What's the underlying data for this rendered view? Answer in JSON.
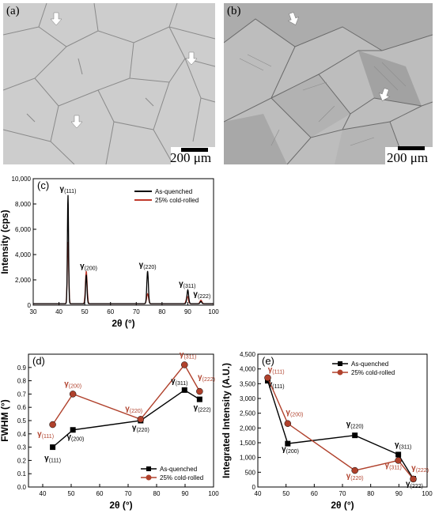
{
  "micrographs": {
    "a": {
      "label": "(a)",
      "scale": "200 μm"
    },
    "b": {
      "label": "(b)",
      "scale": "200 μm"
    }
  },
  "chart_data": [
    {
      "panel": "(c)",
      "type": "line",
      "xlabel": "2θ (°)",
      "ylabel": "Intensity (cps)",
      "xlim": [
        30,
        100
      ],
      "ylim": [
        0,
        10000
      ],
      "xticks": [
        30,
        40,
        50,
        60,
        70,
        80,
        90,
        100
      ],
      "yticks": [
        0,
        2000,
        4000,
        6000,
        8000,
        10000
      ],
      "ytick_labels": [
        "0",
        "2,000",
        "4,000",
        "6,000",
        "8,000",
        "10,000"
      ],
      "legend": "top-right",
      "series": [
        {
          "name": "As-quenched",
          "color": "#000000",
          "peaks": [
            [
              43.5,
              8700
            ],
            [
              50.6,
              2400
            ],
            [
              74.4,
              2700
            ],
            [
              90.0,
              1200
            ],
            [
              95.1,
              300
            ]
          ]
        },
        {
          "name": "25% cold-rolled",
          "color": "#c0392b",
          "peaks": [
            [
              43.5,
              5000
            ],
            [
              50.6,
              2700
            ],
            [
              74.4,
              900
            ],
            [
              89.8,
              700
            ],
            [
              95.1,
              400
            ]
          ]
        }
      ],
      "annotations": [
        {
          "text": "γ(111)",
          "x": 43.5,
          "y": 9000
        },
        {
          "text": "γ(200)",
          "x": 51.5,
          "y": 2900
        },
        {
          "text": "γ(220)",
          "x": 74.4,
          "y": 3000
        },
        {
          "text": "γ(311)",
          "x": 89.8,
          "y": 1500
        },
        {
          "text": "γ(222)",
          "x": 95.5,
          "y": 700
        }
      ]
    },
    {
      "panel": "(d)",
      "type": "line",
      "xlabel": "2θ (°)",
      "ylabel": "FWHM (°)",
      "xlim": [
        35,
        100
      ],
      "ylim": [
        0.0,
        1.0
      ],
      "xticks": [
        40,
        50,
        60,
        70,
        80,
        90,
        100
      ],
      "yticks": [
        0.0,
        0.1,
        0.2,
        0.3,
        0.4,
        0.5,
        0.6,
        0.7,
        0.8,
        0.9
      ],
      "legend": "bottom-right",
      "x": [
        43.5,
        50.6,
        74.4,
        89.8,
        95.1
      ],
      "series": [
        {
          "name": "As-quenched",
          "color": "#000000",
          "marker": "square",
          "values": [
            0.3,
            0.43,
            0.5,
            0.73,
            0.66
          ]
        },
        {
          "name": "25% cold-rolled",
          "color": "#b0412c",
          "marker": "circle",
          "values": [
            0.47,
            0.7,
            0.51,
            0.92,
            0.72
          ]
        }
      ],
      "annotations": [
        {
          "text": "γ(111)",
          "x": 43.5,
          "y": 0.2,
          "color": "#000000"
        },
        {
          "text": "γ(200)",
          "x": 51.5,
          "y": 0.36,
          "color": "#000000"
        },
        {
          "text": "γ(220)",
          "x": 74.4,
          "y": 0.43,
          "color": "#000000"
        },
        {
          "text": "γ(311)",
          "x": 88.0,
          "y": 0.78,
          "color": "#000000"
        },
        {
          "text": "γ(222)",
          "x": 96.0,
          "y": 0.58,
          "color": "#000000"
        },
        {
          "text": "γ(111)",
          "x": 41.0,
          "y": 0.38,
          "color": "#b0412c"
        },
        {
          "text": "γ(200)",
          "x": 50.6,
          "y": 0.76,
          "color": "#b0412c"
        },
        {
          "text": "γ(220)",
          "x": 72.0,
          "y": 0.57,
          "color": "#b0412c"
        },
        {
          "text": "γ(311)",
          "x": 91.0,
          "y": 0.98,
          "color": "#b0412c"
        },
        {
          "text": "γ(222)",
          "x": 97.5,
          "y": 0.81,
          "color": "#b0412c"
        }
      ]
    },
    {
      "panel": "(e)",
      "type": "line",
      "xlabel": "2θ (°)",
      "ylabel": "Integrated Intensity (A.U.)",
      "xlim": [
        40,
        100
      ],
      "ylim": [
        0,
        4500
      ],
      "xticks": [
        40,
        50,
        60,
        70,
        80,
        90,
        100
      ],
      "yticks": [
        0,
        500,
        1000,
        1500,
        2000,
        2500,
        3000,
        3500,
        4000,
        4500
      ],
      "ytick_labels": [
        "0",
        "500",
        "1,000",
        "1,500",
        "2,000",
        "2,500",
        "3,000",
        "3,500",
        "4,000",
        "4,500"
      ],
      "legend": "top-right",
      "x": [
        43.5,
        50.6,
        74.4,
        89.8,
        95.1
      ],
      "series": [
        {
          "name": "As-quenched",
          "color": "#000000",
          "marker": "square",
          "values": [
            3600,
            1470,
            1750,
            1100,
            280
          ]
        },
        {
          "name": "25% cold-rolled",
          "color": "#b0412c",
          "marker": "circle",
          "values": [
            3700,
            2150,
            560,
            900,
            270
          ]
        }
      ],
      "annotations": [
        {
          "text": "γ(111)",
          "x": 46.5,
          "y": 3400,
          "color": "#000000"
        },
        {
          "text": "γ(200)",
          "x": 51.5,
          "y": 1200,
          "color": "#000000"
        },
        {
          "text": "γ(220)",
          "x": 74.4,
          "y": 2050,
          "color": "#000000"
        },
        {
          "text": "γ(311)",
          "x": 91.5,
          "y": 1350,
          "color": "#000000"
        },
        {
          "text": "γ(222)",
          "x": 95.5,
          "y": 30,
          "color": "#000000"
        },
        {
          "text": "γ(111)",
          "x": 46.5,
          "y": 3900,
          "color": "#b0412c"
        },
        {
          "text": "γ(200)",
          "x": 53.0,
          "y": 2450,
          "color": "#b0412c"
        },
        {
          "text": "γ(220)",
          "x": 74.4,
          "y": 300,
          "color": "#b0412c"
        },
        {
          "text": "γ(311)",
          "x": 88.0,
          "y": 650,
          "color": "#b0412c"
        },
        {
          "text": "γ(222)",
          "x": 97.5,
          "y": 560,
          "color": "#b0412c"
        }
      ]
    }
  ]
}
